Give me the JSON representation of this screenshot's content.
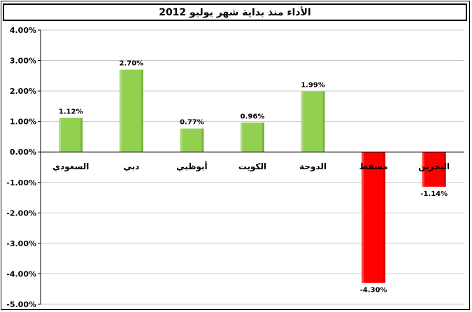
{
  "chart_data": {
    "type": "bar",
    "title": "الأداء منذ بداية شهر يوليو 2012",
    "categories": [
      "السعودي",
      "دبي",
      "أبوظبي",
      "الكويت",
      "الدوحة",
      "مسقط",
      "البحرين"
    ],
    "values": [
      1.12,
      2.7,
      0.77,
      0.96,
      1.99,
      -4.3,
      -1.14
    ],
    "value_labels": [
      "1.12%",
      "2.70%",
      "0.77%",
      "0.96%",
      "1.99%",
      "-4.30%",
      "-1.14%"
    ],
    "yticks": [
      "4.00%",
      "3.00%",
      "2.00%",
      "1.00%",
      "0.00%",
      "-1.00%",
      "-2.00%",
      "-3.00%",
      "-4.00%",
      "-5.00%"
    ],
    "ylim": [
      -5,
      4
    ],
    "grid": true,
    "colors": {
      "positive": "#92d050",
      "negative": "#ff0000",
      "grid": "#c8c8c8"
    }
  }
}
